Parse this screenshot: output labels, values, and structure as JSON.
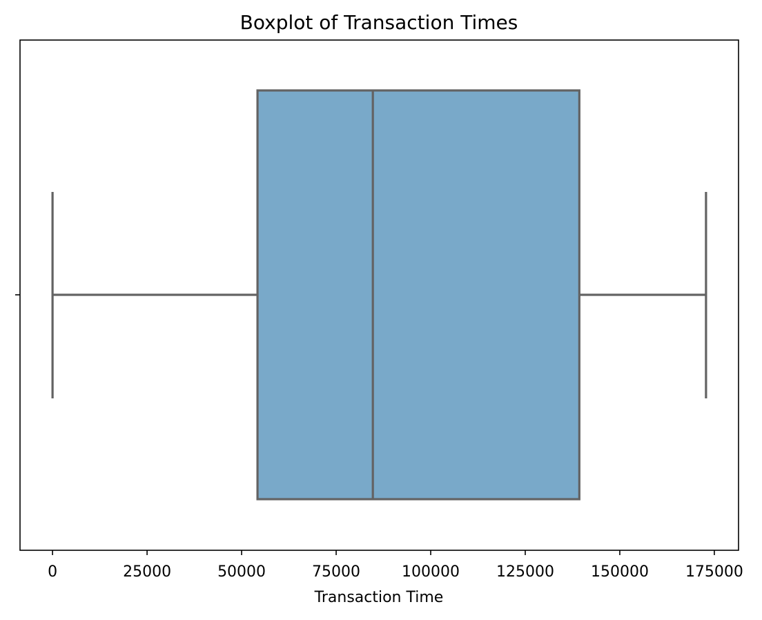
{
  "chart_data": {
    "type": "boxplot",
    "title": "Boxplot of Transaction Times",
    "xlabel": "Transaction Time",
    "ylabel": "",
    "xlim": [
      -8600,
      181400
    ],
    "xticks": [
      0,
      25000,
      50000,
      75000,
      100000,
      125000,
      150000,
      175000
    ],
    "xtick_labels": [
      "0",
      "25000",
      "50000",
      "75000",
      "100000",
      "125000",
      "150000",
      "175000"
    ],
    "orientation": "horizontal",
    "grid": false,
    "box": {
      "whisker_low": 0,
      "q1": 54200,
      "median": 84700,
      "q3": 139300,
      "whisker_high": 172800
    },
    "colors": {
      "box_fill": "#79a9c9",
      "line": "#636363",
      "axes": "#000000"
    }
  }
}
